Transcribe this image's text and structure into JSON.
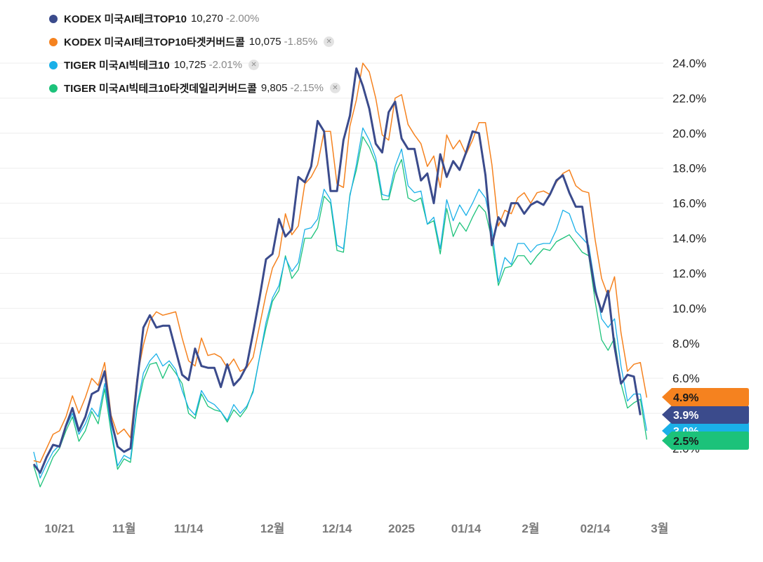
{
  "legend": [
    {
      "name": "KODEX 미국AI테크TOP10",
      "price": "10,270",
      "change": "-2.00%",
      "color": "#3b4b8c",
      "closable": false
    },
    {
      "name": "KODEX 미국AI테크TOP10타겟커버드콜",
      "price": "10,075",
      "change": "-1.85%",
      "color": "#f5821f",
      "closable": true
    },
    {
      "name": "TIGER 미국AI빅테크10",
      "price": "10,725",
      "change": "-2.01%",
      "color": "#1ab0e8",
      "closable": true
    },
    {
      "name": "TIGER 미국AI빅테크10타겟데일리커버드콜",
      "price": "9,805",
      "change": "-2.15%",
      "color": "#1cc27a",
      "closable": true
    }
  ],
  "close_icon": "close-icon",
  "chart_data": {
    "type": "line",
    "y_axis_position": "right",
    "ylim": [
      -1,
      25
    ],
    "yticks": [
      2,
      4,
      6,
      8,
      10,
      12,
      14,
      16,
      18,
      20,
      22,
      24
    ],
    "ytick_labels": [
      "2.0%",
      "4.0%",
      "6.0%",
      "8.0%",
      "10.0%",
      "12.0%",
      "14.0%",
      "16.0%",
      "18.0%",
      "20.0%",
      "22.0%",
      "24.0%"
    ],
    "xlim": [
      0,
      103
    ],
    "xticks": [
      4,
      14,
      24,
      37,
      47,
      57,
      67,
      77,
      87,
      97
    ],
    "xtick_labels": [
      "10/21",
      "11월",
      "11/14",
      "12월",
      "12/14",
      "2025",
      "01/14",
      "2월",
      "02/14",
      "3월"
    ],
    "grid": true,
    "series": [
      {
        "name": "KODEX 미국AI테크TOP10",
        "color": "#3b4b8c",
        "width": 3,
        "values": [
          1.1,
          0.6,
          1.5,
          2.2,
          2.1,
          3.3,
          4.3,
          3.0,
          3.8,
          5.1,
          5.3,
          6.4,
          3.6,
          2.1,
          1.8,
          2.0,
          5.7,
          8.9,
          9.6,
          8.9,
          9.0,
          9.0,
          7.6,
          6.2,
          5.9,
          7.7,
          6.7,
          6.6,
          6.6,
          5.5,
          6.8,
          5.6,
          6.0,
          6.7,
          8.6,
          10.6,
          12.8,
          13.1,
          15.1,
          14.1,
          14.5,
          17.5,
          17.2,
          18.1,
          20.7,
          20.1,
          16.7,
          16.7,
          19.6,
          21.0,
          23.7,
          22.7,
          21.4,
          19.4,
          18.9,
          21.2,
          21.8,
          19.7,
          19.1,
          19.1,
          17.3,
          17.7,
          16.0,
          18.8,
          17.5,
          18.4,
          17.9,
          18.9,
          20.1,
          20.0,
          17.6,
          13.6,
          15.2,
          14.7,
          16.0,
          16.0,
          15.4,
          15.9,
          16.1,
          15.9,
          16.5,
          17.3,
          17.6,
          16.6,
          15.8,
          15.8,
          13.2,
          11.0,
          9.8,
          11.0,
          7.8,
          5.7,
          6.2,
          6.1,
          3.9
        ]
      },
      {
        "name": "KODEX 미국AI테크TOP10타겟커버드콜",
        "color": "#f5821f",
        "width": 1.5,
        "values": [
          1.3,
          1.2,
          2.0,
          2.8,
          3.0,
          3.8,
          5.0,
          4.0,
          4.9,
          6.0,
          5.6,
          6.9,
          3.9,
          2.8,
          3.1,
          2.6,
          6.0,
          7.9,
          9.3,
          9.8,
          9.6,
          9.7,
          9.8,
          8.3,
          7.0,
          6.7,
          8.3,
          7.3,
          7.4,
          7.2,
          6.6,
          7.1,
          6.4,
          6.6,
          7.2,
          9.0,
          10.8,
          12.3,
          13.0,
          15.4,
          14.2,
          14.7,
          17.1,
          17.5,
          18.2,
          20.1,
          20.1,
          17.1,
          16.9,
          20.4,
          21.9,
          24.0,
          23.5,
          22.0,
          19.9,
          19.6,
          22.0,
          22.2,
          20.5,
          19.9,
          19.4,
          18.1,
          18.7,
          16.9,
          19.9,
          19.1,
          19.6,
          18.8,
          19.6,
          20.6,
          20.6,
          18.2,
          14.7,
          15.6,
          15.4,
          16.3,
          16.6,
          16.0,
          16.6,
          16.7,
          16.5,
          17.2,
          17.7,
          17.9,
          17.0,
          16.7,
          16.6,
          13.9,
          11.7,
          10.7,
          11.8,
          8.6,
          6.4,
          6.8,
          6.9,
          4.9
        ]
      },
      {
        "name": "TIGER 미국AI빅테크10",
        "color": "#1ab0e8",
        "width": 1.3,
        "values": [
          1.8,
          0.3,
          1.1,
          1.8,
          2.2,
          3.2,
          4.0,
          2.8,
          3.4,
          4.3,
          3.8,
          5.7,
          3.2,
          1.0,
          1.6,
          1.4,
          4.4,
          6.3,
          7.0,
          7.4,
          6.7,
          7.0,
          6.5,
          5.3,
          4.3,
          3.9,
          5.3,
          4.7,
          4.5,
          4.1,
          3.6,
          4.5,
          4.0,
          4.4,
          5.2,
          7.2,
          9.2,
          10.6,
          11.3,
          12.9,
          12.1,
          12.6,
          14.5,
          14.6,
          15.1,
          16.8,
          16.2,
          13.6,
          13.4,
          16.4,
          18.2,
          20.3,
          19.6,
          18.6,
          16.5,
          16.4,
          18.1,
          19.1,
          17.0,
          16.6,
          16.7,
          14.8,
          15.2,
          13.4,
          16.2,
          15.0,
          15.9,
          15.3,
          16.0,
          16.8,
          16.3,
          14.5,
          11.5,
          12.9,
          12.5,
          13.7,
          13.7,
          13.2,
          13.6,
          13.7,
          13.7,
          14.5,
          15.6,
          15.4,
          14.4,
          14.0,
          13.6,
          11.3,
          9.4,
          8.9,
          9.4,
          6.7,
          4.7,
          5.1,
          5.1,
          3.0
        ]
      },
      {
        "name": "TIGER 미국AI빅테크10타겟데일리커버드콜",
        "color": "#1cc27a",
        "width": 1.3,
        "values": [
          1.0,
          -0.2,
          0.6,
          1.5,
          2.0,
          3.0,
          3.8,
          2.4,
          3.0,
          4.1,
          3.4,
          5.4,
          2.9,
          0.8,
          1.4,
          1.2,
          4.2,
          5.9,
          6.8,
          6.9,
          6.0,
          6.8,
          6.3,
          5.7,
          4.0,
          3.7,
          5.1,
          4.4,
          4.2,
          4.1,
          3.5,
          4.2,
          3.8,
          4.3,
          5.3,
          7.2,
          8.9,
          10.4,
          11.0,
          13.0,
          11.7,
          12.2,
          14.0,
          14.0,
          14.6,
          16.4,
          16.0,
          13.3,
          13.2,
          16.5,
          17.9,
          19.8,
          19.2,
          18.3,
          16.2,
          16.2,
          17.7,
          18.5,
          16.3,
          16.1,
          16.3,
          14.8,
          15.0,
          13.1,
          15.7,
          14.1,
          14.9,
          14.4,
          15.2,
          15.9,
          15.5,
          13.9,
          11.3,
          12.3,
          12.4,
          13.0,
          13.0,
          12.5,
          13.0,
          13.4,
          13.3,
          13.8,
          14.0,
          14.2,
          13.7,
          13.2,
          13.0,
          10.4,
          8.2,
          7.6,
          8.3,
          5.7,
          4.3,
          4.6,
          4.8,
          2.5
        ]
      }
    ],
    "end_tags": [
      {
        "label": "4.9%",
        "value": 4.9,
        "color": "#f5821f",
        "text_color": "#1a1a1a"
      },
      {
        "label": "3.9%",
        "value": 3.9,
        "color": "#3b4b8c",
        "text_color": "#ffffff"
      },
      {
        "label": "3.0%",
        "value": 3.0,
        "color": "#1ab0e8",
        "text_color": "#ffffff"
      },
      {
        "label": "2.5%",
        "value": 2.5,
        "color": "#1cc27a",
        "text_color": "#1a1a1a"
      }
    ]
  }
}
